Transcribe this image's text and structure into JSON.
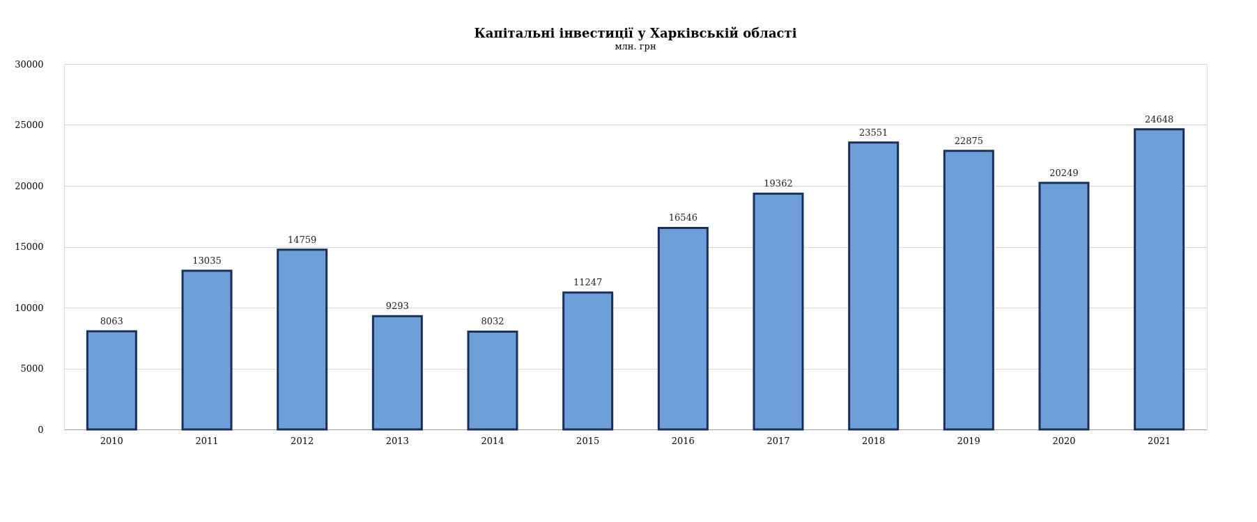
{
  "chart_data": {
    "type": "bar",
    "title": "Капітальні інвестиції у Харківській області",
    "subtitle": "млн. грн",
    "categories": [
      "2010",
      "2011",
      "2012",
      "2013",
      "2014",
      "2015",
      "2016",
      "2017",
      "2018",
      "2019",
      "2020",
      "2021"
    ],
    "values": [
      8063,
      13035,
      14759,
      9293,
      8032,
      11247,
      16546,
      19362,
      23551,
      22875,
      20249,
      24648
    ],
    "color": "#6f9fd8",
    "ylim": [
      0,
      30000
    ],
    "yticks": [
      0,
      5000,
      10000,
      15000,
      20000,
      25000,
      30000
    ],
    "grid": "y",
    "data_labels": true
  }
}
